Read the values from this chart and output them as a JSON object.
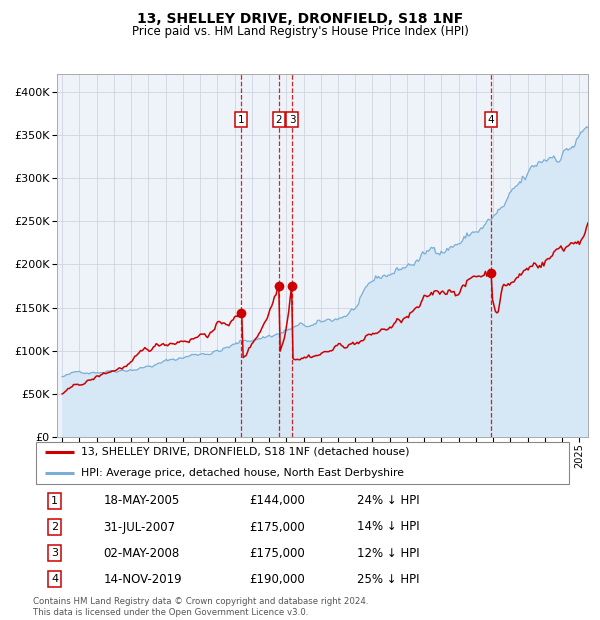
{
  "title": "13, SHELLEY DRIVE, DRONFIELD, S18 1NF",
  "subtitle": "Price paid vs. HM Land Registry's House Price Index (HPI)",
  "legend_line1": "13, SHELLEY DRIVE, DRONFIELD, S18 1NF (detached house)",
  "legend_line2": "HPI: Average price, detached house, North East Derbyshire",
  "transactions": [
    {
      "num": 1,
      "date": "2005-05-18",
      "x": 2005.38,
      "price": 144000,
      "label": "18-MAY-2005",
      "price_str": "£144,000",
      "hpi": "24% ↓ HPI"
    },
    {
      "num": 2,
      "date": "2007-07-31",
      "x": 2007.58,
      "price": 175000,
      "label": "31-JUL-2007",
      "price_str": "£175,000",
      "hpi": "14% ↓ HPI"
    },
    {
      "num": 3,
      "date": "2008-05-02",
      "x": 2008.34,
      "price": 175000,
      "label": "02-MAY-2008",
      "price_str": "£175,000",
      "hpi": "12% ↓ HPI"
    },
    {
      "num": 4,
      "date": "2019-11-14",
      "x": 2019.87,
      "price": 190000,
      "label": "14-NOV-2019",
      "price_str": "£190,000",
      "hpi": "25% ↓ HPI"
    }
  ],
  "hpi_color": "#7aaed6",
  "hpi_fill_color": "#d6e8f5",
  "price_line_color": "#cc0000",
  "point_color": "#cc0000",
  "dashed_line_color": "#cc0000",
  "plot_bg": "#eef3fa",
  "grid_color": "#c8d0dc",
  "ylim": [
    0,
    420000
  ],
  "yticks": [
    0,
    50000,
    100000,
    150000,
    200000,
    250000,
    300000,
    350000,
    400000
  ],
  "xstart": 1994.7,
  "xend": 2025.5,
  "footer": "Contains HM Land Registry data © Crown copyright and database right 2024.\nThis data is licensed under the Open Government Licence v3.0."
}
